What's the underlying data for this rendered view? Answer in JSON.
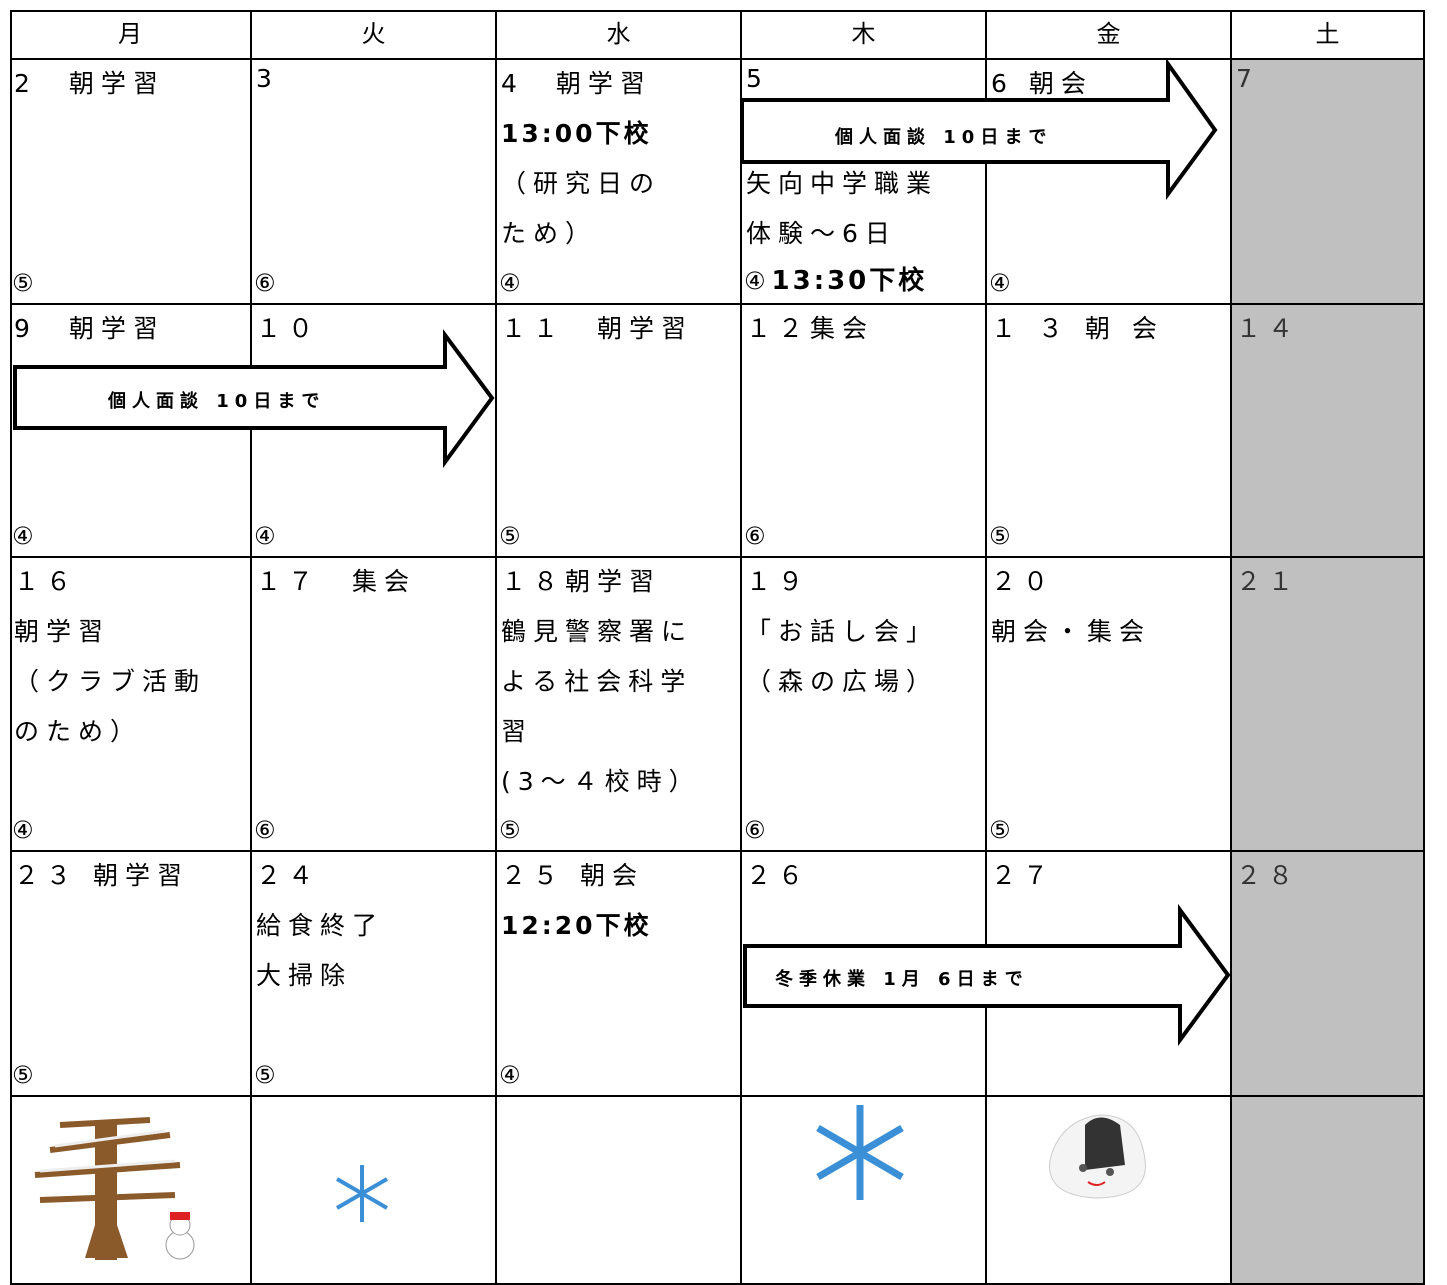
{
  "header": {
    "days": [
      "月",
      "火",
      "水",
      "木",
      "金",
      "土"
    ]
  },
  "weeks": [
    [
      {
        "lines": [
          "2　朝学習"
        ],
        "count": "⑤"
      },
      {
        "lines": [
          "3"
        ],
        "count": "⑥"
      },
      {
        "lines": [
          "4　朝学習",
          "13:00下校",
          "（研究日の",
          "ため）"
        ],
        "emphasis": [
          1
        ],
        "count": "④"
      },
      {
        "lines": [
          "5",
          "矢向中学職業",
          "体験～6日"
        ],
        "count": "④",
        "note": "13:30下校"
      },
      {
        "lines": [
          "6 朝会"
        ],
        "count": "④"
      },
      {
        "lines": [
          "7"
        ]
      }
    ],
    [
      {
        "lines": [
          "9　朝学習"
        ],
        "count": "④"
      },
      {
        "lines": [
          "１０"
        ],
        "count": "④"
      },
      {
        "lines": [
          "１１　朝学習"
        ],
        "count": "⑤"
      },
      {
        "lines": [
          "１２集会"
        ],
        "count": "⑥"
      },
      {
        "lines": [
          "１ ３ 朝 会"
        ],
        "count": "⑤"
      },
      {
        "lines": [
          "１４"
        ]
      }
    ],
    [
      {
        "lines": [
          "１６",
          "朝学習",
          "（クラブ活動",
          "のため）"
        ],
        "count": "④"
      },
      {
        "lines": [
          "１７　集会"
        ],
        "count": "⑥"
      },
      {
        "lines": [
          "１８朝学習",
          "鶴見警察署に",
          "よる社会科学",
          "習",
          "(3～４校時）"
        ],
        "count": "⑤"
      },
      {
        "lines": [
          "１９",
          "「お話し会」",
          "（森の広場）"
        ],
        "count": "⑥"
      },
      {
        "lines": [
          "２０",
          "朝会・集会"
        ],
        "count": "⑤"
      },
      {
        "lines": [
          "２１"
        ]
      }
    ],
    [
      {
        "lines": [
          "２３ 朝学習"
        ],
        "count": "⑤"
      },
      {
        "lines": [
          "２４",
          "給食終了",
          "大掃除"
        ],
        "count": "⑤"
      },
      {
        "lines": [
          "２５ 朝会",
          "12:20下校"
        ],
        "emphasis": [
          1
        ],
        "count": "④"
      },
      {
        "lines": [
          "２６"
        ]
      },
      {
        "lines": [
          "２７"
        ]
      },
      {
        "lines": [
          "２８"
        ]
      }
    ]
  ],
  "arrows": [
    {
      "label": "個人面談 10日まで"
    },
    {
      "label": "個人面談 10日まで"
    },
    {
      "label": "冬季休業 1月 6日まで"
    }
  ]
}
